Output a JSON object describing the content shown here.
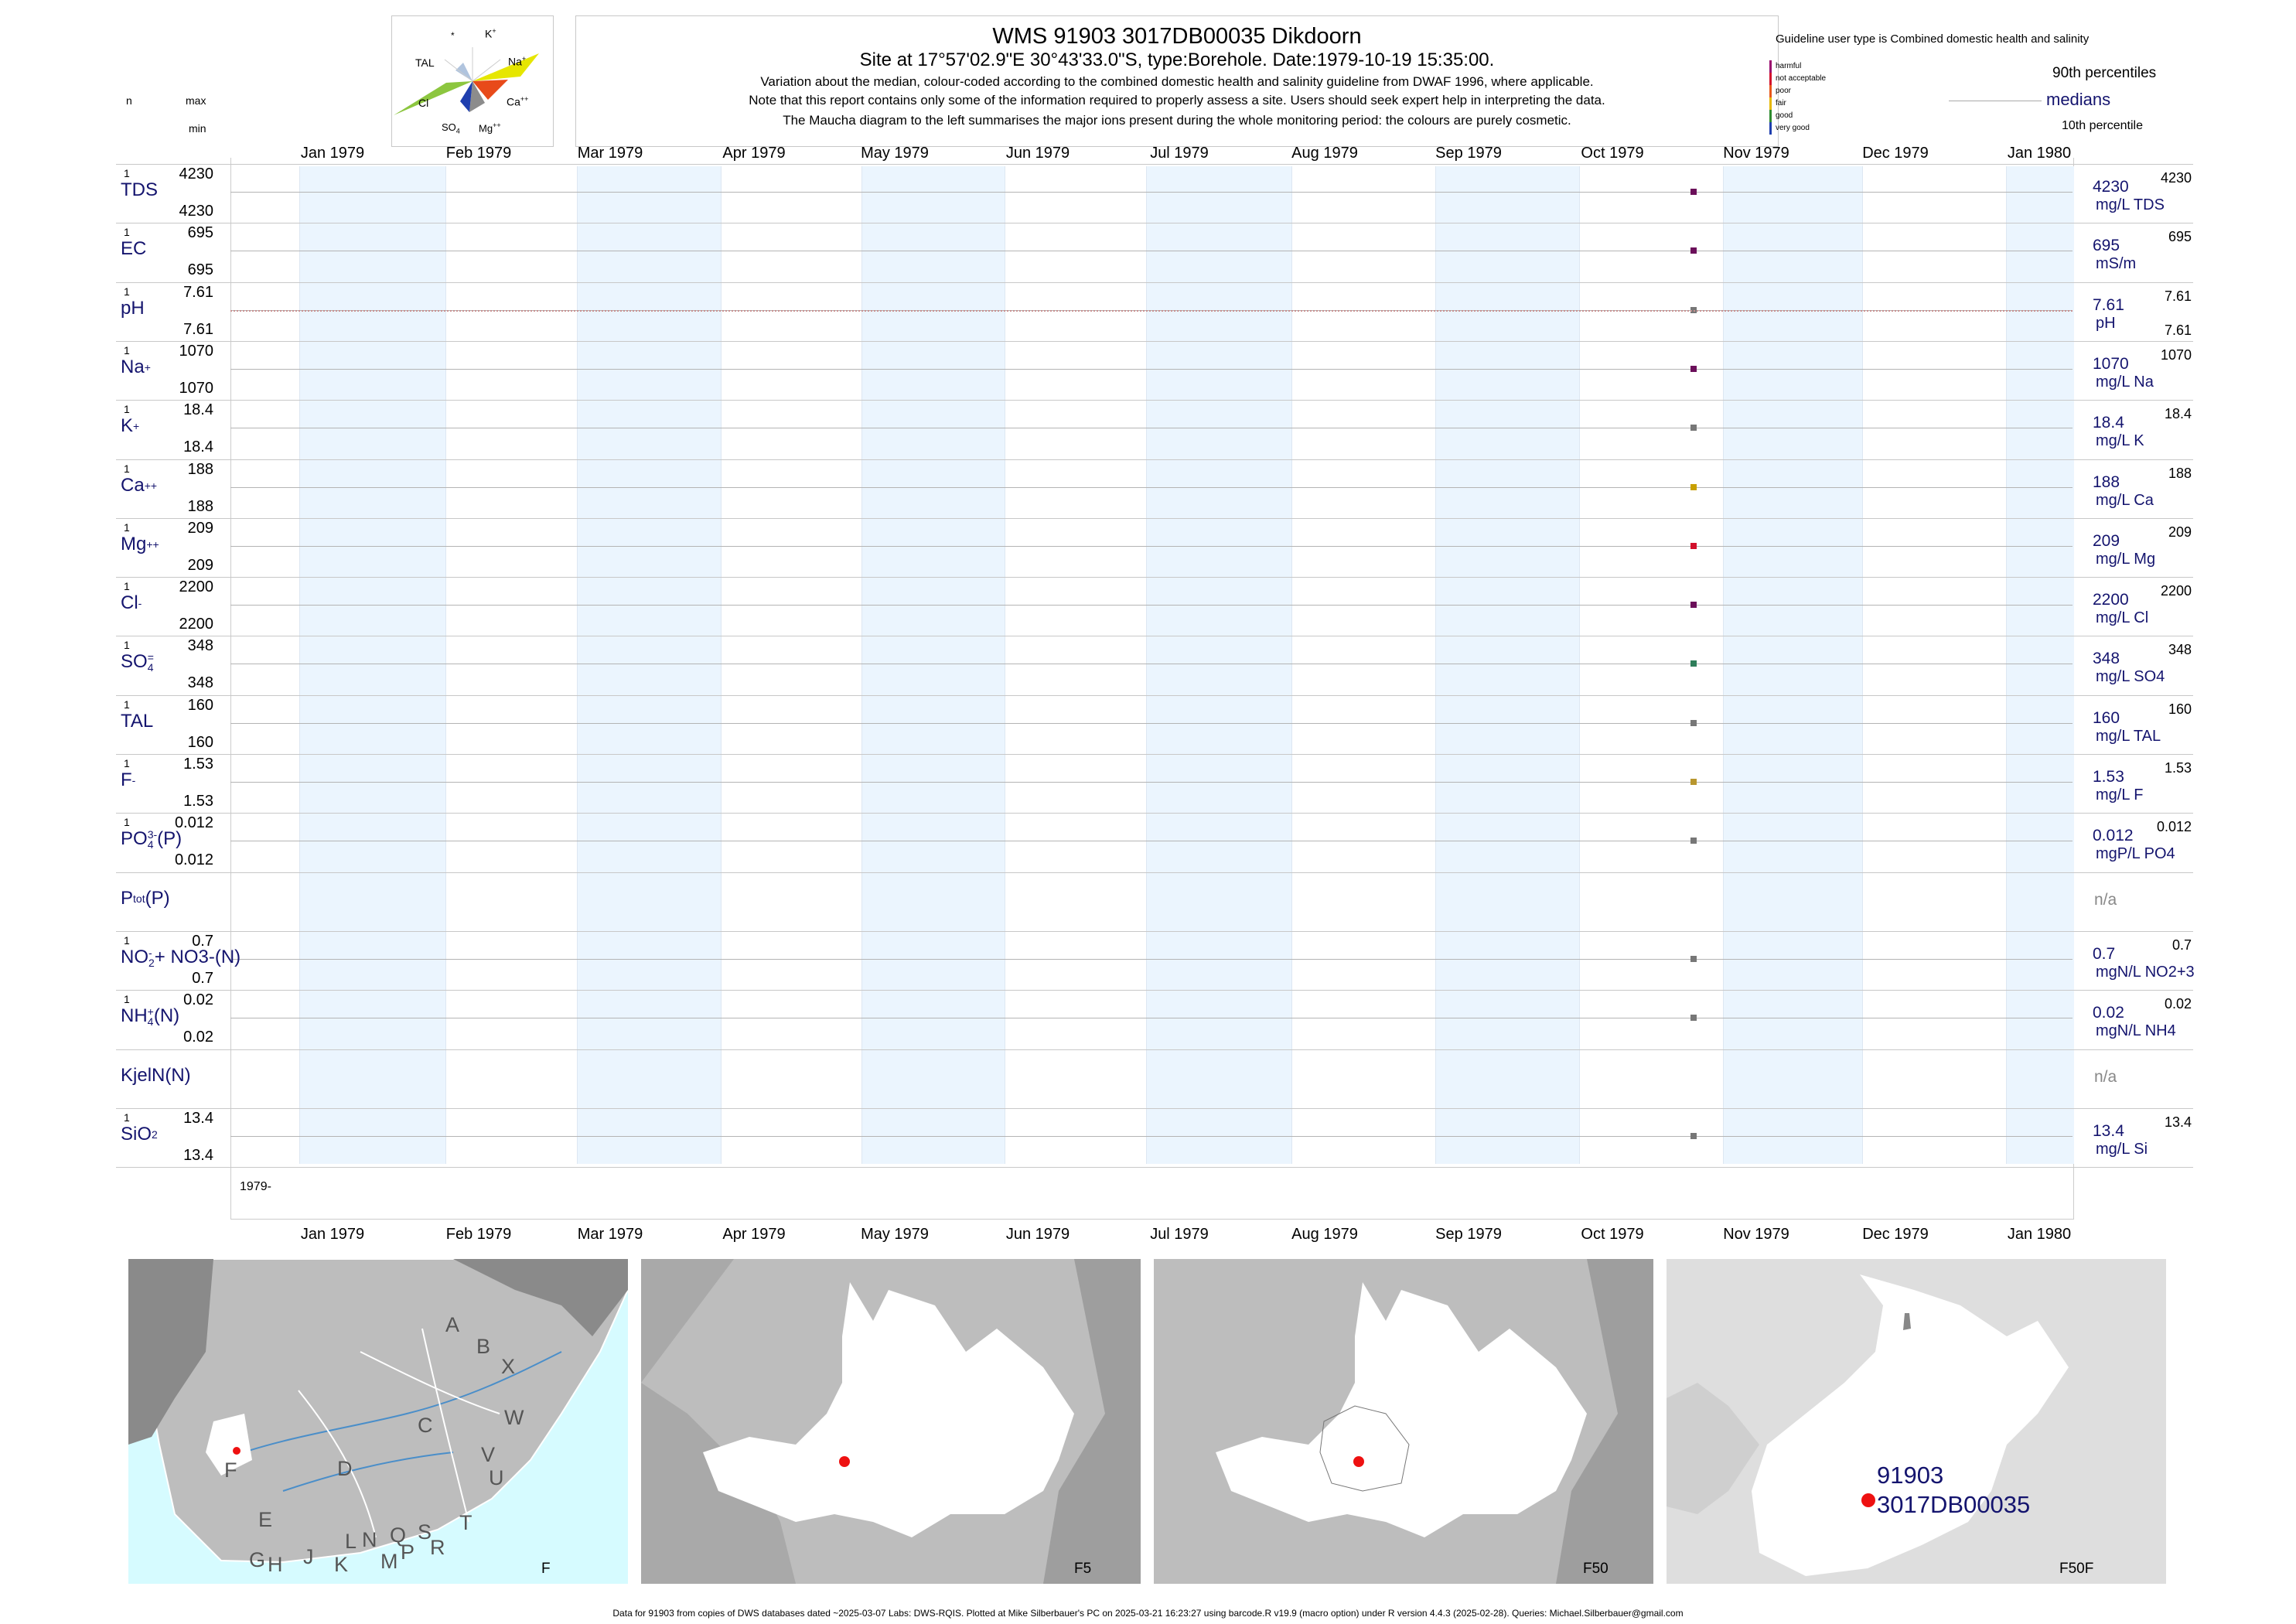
{
  "header": {
    "title": "WMS 91903 3017DB00035 Dikdoorn",
    "subtitle": "Site at 17°57'02.9\"E 30°43'33.0\"S, type:Borehole. Date:1979-10-19 15:35:00.",
    "note1": "Variation about the median,  colour-coded according to the combined domestic health and salinity guideline from DWAF 1996, where applicable.",
    "note2": "Note that this report contains only some of the information required to properly assess a site. Users should seek expert help in interpreting the data.",
    "note3": "The Maucha diagram to the left summarises the major ions present during the whole monitoring period: the colours are purely cosmetic."
  },
  "left_header": {
    "n": "n",
    "max": "max",
    "min": "min"
  },
  "maucha": {
    "labels": [
      "*",
      "K+",
      "TAL",
      "Na+",
      "Cl",
      "Ca++",
      "SO4=",
      "Mg++"
    ]
  },
  "legend": {
    "guideline": "Guideline user type is Combined domestic health and salinity",
    "classes": [
      {
        "label": "harmful",
        "color": "#9a0c6e"
      },
      {
        "label": "not acceptable",
        "color": "#d20f2b"
      },
      {
        "label": "poor",
        "color": "#e8571a"
      },
      {
        "label": "fair",
        "color": "#e6b800"
      },
      {
        "label": "good",
        "color": "#2e8b2e"
      },
      {
        "label": "very good",
        "color": "#1f3fae"
      }
    ],
    "p90": "90th percentiles",
    "medians": "medians",
    "p10": "10th percentile"
  },
  "months": [
    "Jan 1979",
    "Feb 1979",
    "Mar 1979",
    "Apr 1979",
    "May 1979",
    "Jun 1979",
    "Jul 1979",
    "Aug 1979",
    "Sep 1979",
    "Oct 1979",
    "Nov 1979",
    "Dec 1979",
    "Jan 1980"
  ],
  "year_label": "1979-",
  "chart_data": {
    "type": "scatter",
    "x_range": [
      "1979-01-01",
      "1980-01-01"
    ],
    "sample_date": "1979-10-19",
    "series": [
      {
        "name": "TDS",
        "label": "TDS",
        "n": "1",
        "max": "4230",
        "min": "4230",
        "value": 4230,
        "unit": "mg/L TDS",
        "right_value": "4230",
        "right_p90": "4230",
        "color": "#6b0f5a"
      },
      {
        "name": "EC",
        "label": "EC",
        "n": "1",
        "max": "695",
        "min": "695",
        "value": 695,
        "unit": "mS/m",
        "right_value": "695",
        "right_p90": "695",
        "color": "#6b0f5a"
      },
      {
        "name": "pH",
        "label": "pH",
        "n": "1",
        "max": "7.61",
        "min": "7.61",
        "value": 7.61,
        "unit": "pH",
        "right_value": "7.61",
        "right_p90": "7.61",
        "right_p10": "7.61",
        "color": "#777777"
      },
      {
        "name": "Na",
        "label": "Na",
        "sup": "+",
        "n": "1",
        "max": "1070",
        "min": "1070",
        "value": 1070,
        "unit": "mg/L Na",
        "right_value": "1070",
        "right_p90": "1070",
        "color": "#6b0f5a"
      },
      {
        "name": "K",
        "label": "K",
        "sup": "+",
        "n": "1",
        "max": "18.4",
        "min": "18.4",
        "value": 18.4,
        "unit": "mg/L K",
        "right_value": "18.4",
        "right_p90": "18.4",
        "color": "#777777"
      },
      {
        "name": "Ca",
        "label": "Ca",
        "sup": "++",
        "n": "1",
        "max": "188",
        "min": "188",
        "value": 188,
        "unit": "mg/L Ca",
        "right_value": "188",
        "right_p90": "188",
        "color": "#c8a000"
      },
      {
        "name": "Mg",
        "label": "Mg",
        "sup": "++",
        "n": "1",
        "max": "209",
        "min": "209",
        "value": 209,
        "unit": "mg/L Mg",
        "right_value": "209",
        "right_p90": "209",
        "color": "#d20f2b"
      },
      {
        "name": "Cl",
        "label": "Cl",
        "sup": "-",
        "n": "1",
        "max": "2200",
        "min": "2200",
        "value": 2200,
        "unit": "mg/L Cl",
        "right_value": "2200",
        "right_p90": "2200",
        "color": "#6b0f5a"
      },
      {
        "name": "SO4",
        "label": "SO",
        "sub": "4",
        "sup": "=",
        "n": "1",
        "max": "348",
        "min": "348",
        "value": 348,
        "unit": "mg/L SO4",
        "right_value": "348",
        "right_p90": "348",
        "color": "#2e7d5a"
      },
      {
        "name": "TAL",
        "label": "TAL",
        "n": "1",
        "max": "160",
        "min": "160",
        "value": 160,
        "unit": "mg/L TAL",
        "right_value": "160",
        "right_p90": "160",
        "color": "#777777"
      },
      {
        "name": "F",
        "label": "F",
        "sup": "-",
        "n": "1",
        "max": "1.53",
        "min": "1.53",
        "value": 1.53,
        "unit": "mg/L F",
        "right_value": "1.53",
        "right_p90": "1.53",
        "color": "#b8962e"
      },
      {
        "name": "PO4",
        "label": "PO",
        "sub": "4",
        "sup": "3-",
        "suffix": "(P)",
        "n": "1",
        "max": "0.012",
        "min": "0.012",
        "value": 0.012,
        "unit": "mgP/L PO4",
        "right_value": "0.012",
        "right_p90": "0.012",
        "color": "#777777"
      },
      {
        "name": "Ptot",
        "label": "P",
        "sub": "tot",
        "suffix": "(P)",
        "n": "",
        "max": "",
        "min": "",
        "value": null,
        "unit": "",
        "na": "n/a"
      },
      {
        "name": "NO2+NO3",
        "label": "NO",
        "sub": "2",
        "sup": "-",
        "suffix": "+ NO3-(N)",
        "n": "1",
        "max": "0.7",
        "min": "0.7",
        "value": 0.7,
        "unit": "mgN/L NO2+3",
        "right_value": "0.7",
        "right_p90": "0.7",
        "color": "#777777"
      },
      {
        "name": "NH4",
        "label": "NH",
        "sub": "4",
        "sup": "+",
        "suffix": "(N)",
        "n": "1",
        "max": "0.02",
        "min": "0.02",
        "value": 0.02,
        "unit": "mgN/L NH4",
        "right_value": "0.02",
        "right_p90": "0.02",
        "color": "#777777"
      },
      {
        "name": "KjelN",
        "label": "KjelN(N)",
        "n": "",
        "max": "",
        "min": "",
        "value": null,
        "unit": "",
        "na": "n/a"
      },
      {
        "name": "SiO2",
        "label": "SiO",
        "sub": "2",
        "n": "1",
        "max": "13.4",
        "min": "13.4",
        "value": 13.4,
        "unit": "mg/L Si",
        "right_value": "13.4",
        "right_p90": "13.4",
        "color": "#777777"
      }
    ]
  },
  "maps": {
    "map1": {
      "label": "F",
      "regions": [
        "A",
        "B",
        "X",
        "W",
        "C",
        "V",
        "U",
        "D",
        "T",
        "F",
        "E",
        "G",
        "H",
        "J",
        "K",
        "L",
        "N",
        "M",
        "Q",
        "P",
        "S",
        "R"
      ]
    },
    "map2": {
      "label": "F5"
    },
    "map3": {
      "label": "F50"
    },
    "map4": {
      "label": "F50F",
      "site_id": "91903",
      "site_code": "3017DB00035"
    }
  },
  "footer": "Data for 91903 from copies of DWS databases dated ~2025-03-07 Labs: DWS-RQIS. Plotted at Mike Silberbauer's PC on 2025-03-21 16:23:27 using barcode.R v19.9 (macro option) under R version 4.4.3 (2025-02-28). Queries: Michael.Silberbauer@gmail.com"
}
